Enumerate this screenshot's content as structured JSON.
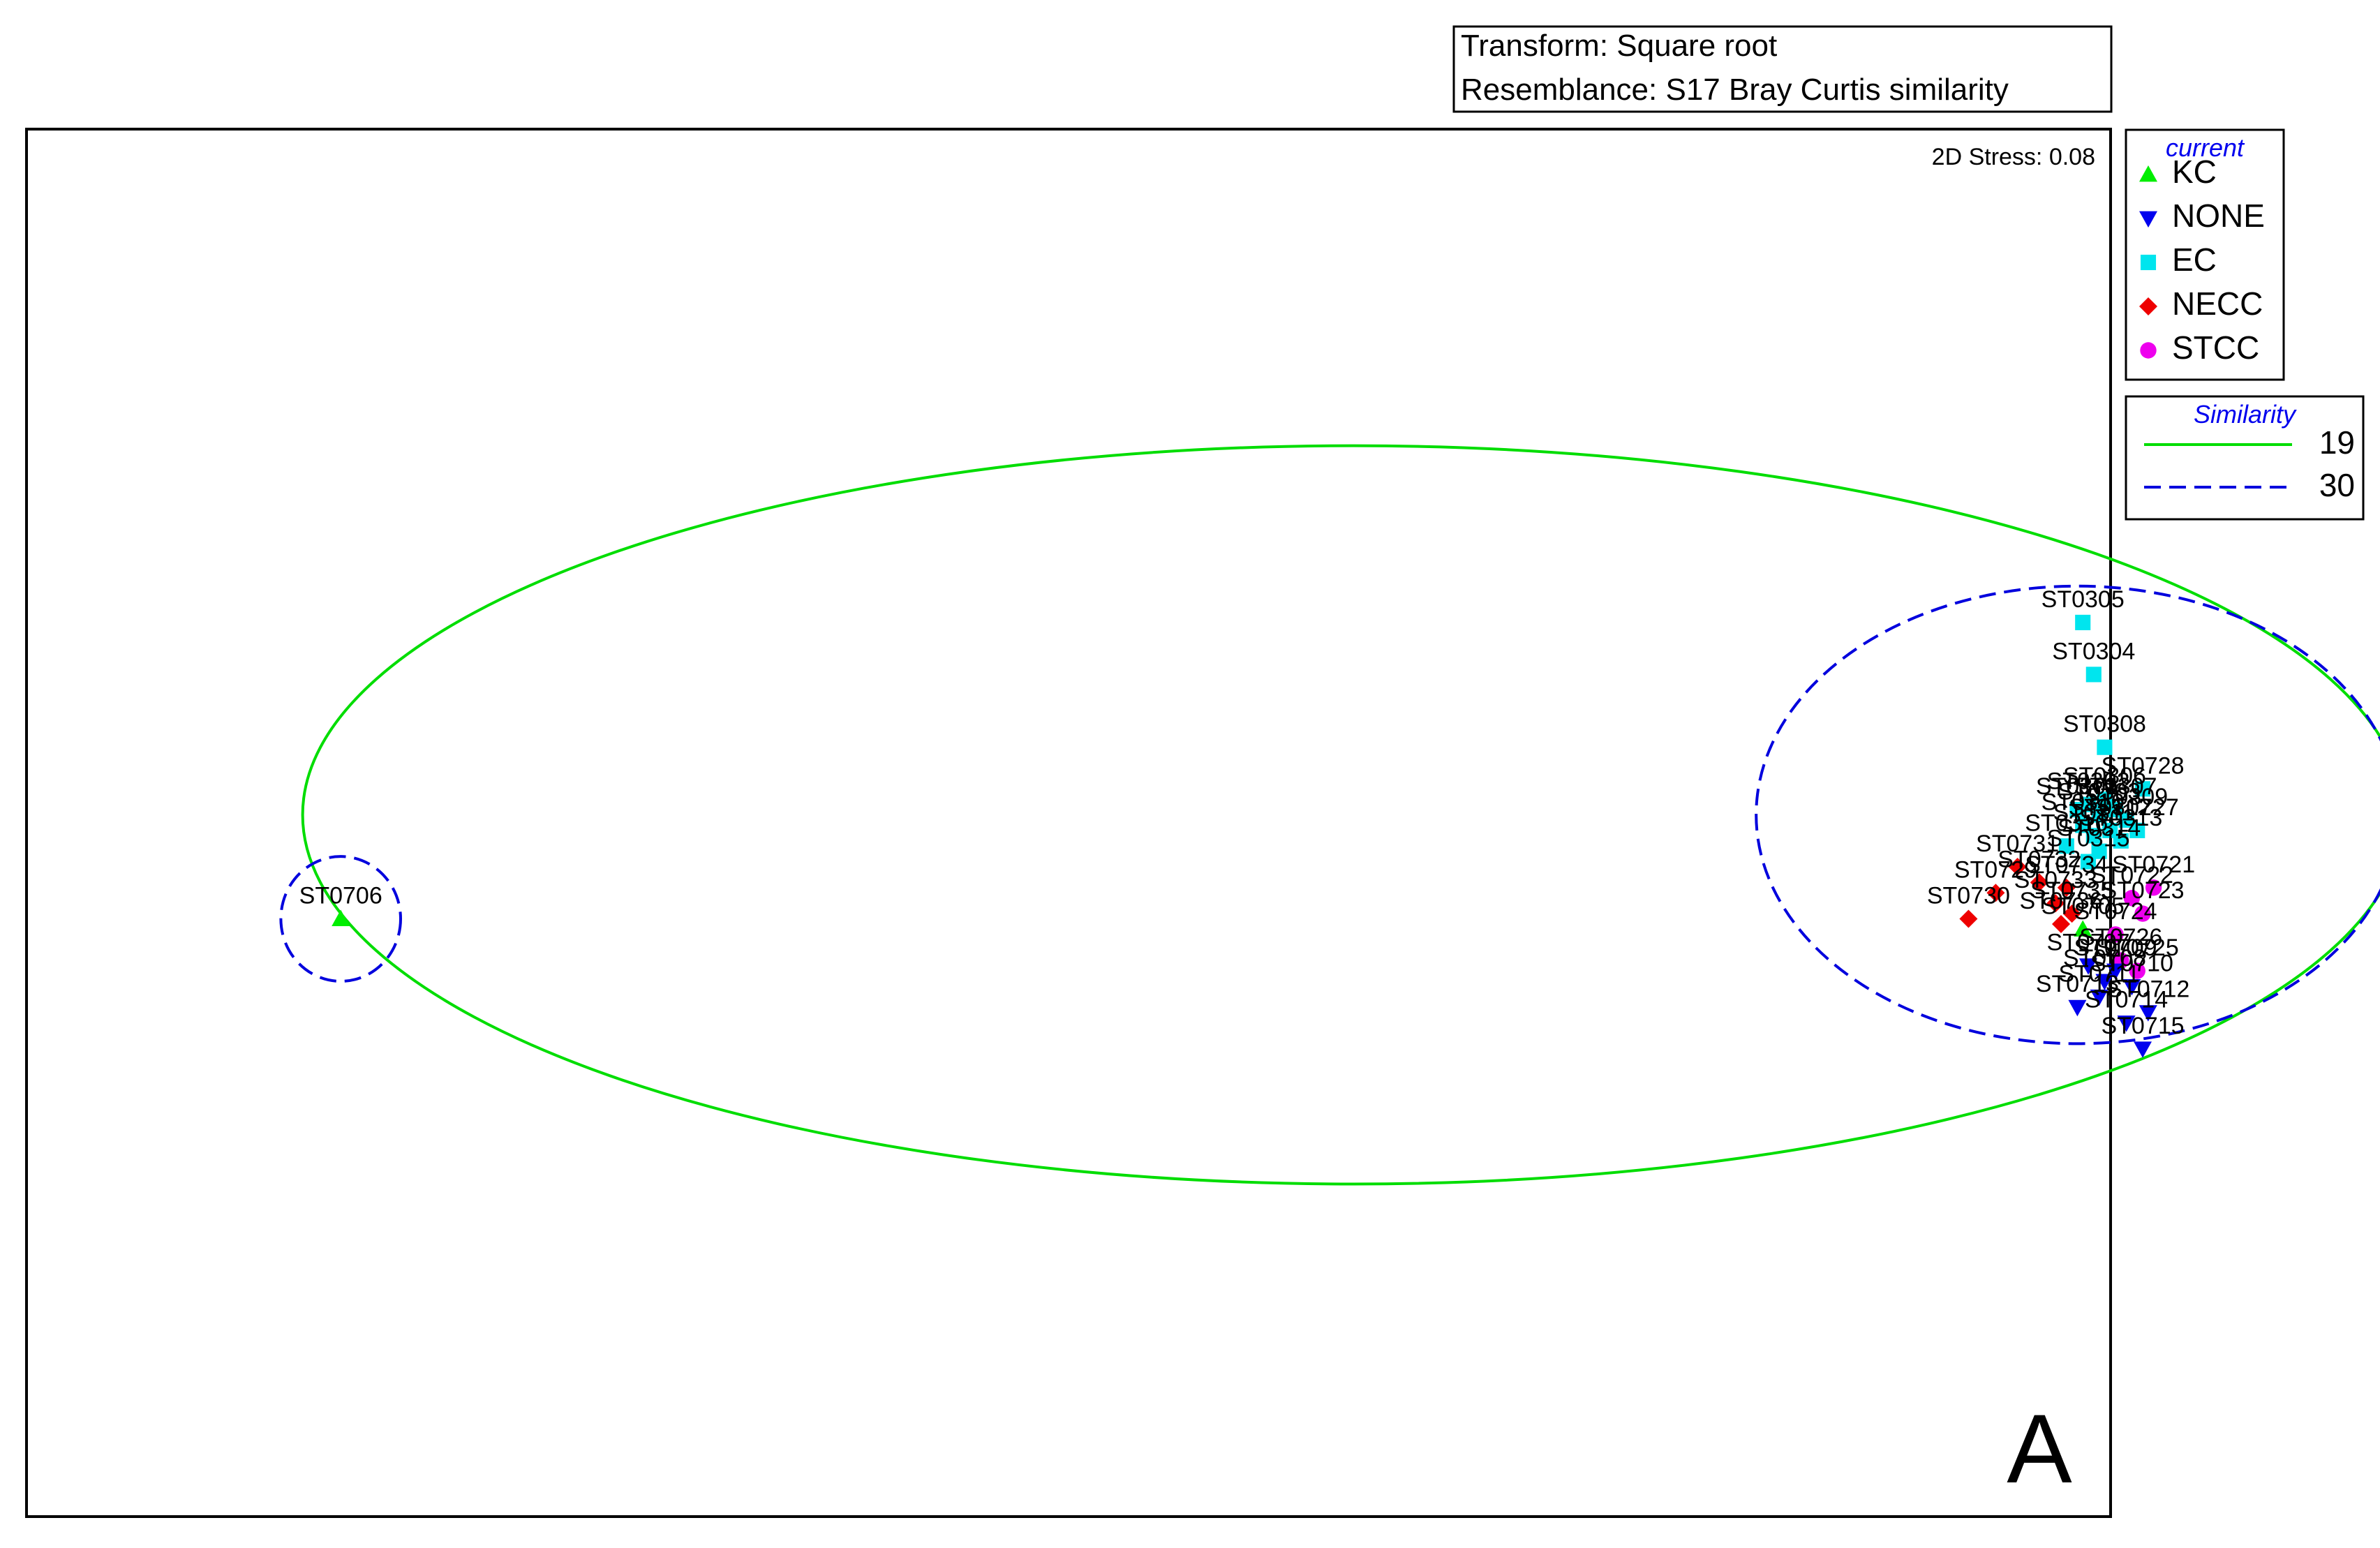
{
  "info_box": {
    "transform": "Transform: Square root",
    "resemblance": "Resemblance: S17 Bray Curtis similarity"
  },
  "chart_data": {
    "type": "scatter",
    "subtype": "nMDS ordination",
    "stress_label": "2D Stress: 0.08",
    "panel_label": "A",
    "grid": false,
    "legend_group": {
      "title": "current",
      "entries": [
        {
          "name": "KC",
          "color": "#00ee00",
          "marker": "triangle-up"
        },
        {
          "name": "NONE",
          "color": "#0000ee",
          "marker": "triangle-down"
        },
        {
          "name": "EC",
          "color": "#00e5ee",
          "marker": "square"
        },
        {
          "name": "NECC",
          "color": "#ee0000",
          "marker": "diamond"
        },
        {
          "name": "STCC",
          "color": "#ee00ee",
          "marker": "circle"
        }
      ]
    },
    "legend_similarity": {
      "title": "Similarity",
      "entries": [
        {
          "value": "19",
          "color": "#00dd00",
          "style": "solid"
        },
        {
          "value": "30",
          "color": "#0000dd",
          "style": "dashed"
        }
      ]
    },
    "points": [
      {
        "label": "ST0706",
        "group": "KC",
        "x": -2.86,
        "y": -0.19
      },
      {
        "label": "ST0305",
        "group": "EC",
        "x": 0.34,
        "y": 0.38
      },
      {
        "label": "ST0304",
        "group": "EC",
        "x": 0.36,
        "y": 0.28
      },
      {
        "label": "ST0308",
        "group": "EC",
        "x": 0.38,
        "y": 0.14
      },
      {
        "label": "ST0728",
        "group": "EC",
        "x": 0.45,
        "y": 0.06
      },
      {
        "label": "ST0301",
        "group": "EC",
        "x": 0.33,
        "y": 0.02
      },
      {
        "label": "ST0302",
        "group": "EC",
        "x": 0.35,
        "y": 0.03
      },
      {
        "label": "ST0303",
        "group": "EC",
        "x": 0.37,
        "y": 0.01
      },
      {
        "label": "ST0306",
        "group": "EC",
        "x": 0.38,
        "y": 0.04
      },
      {
        "label": "ST0307",
        "group": "EC",
        "x": 0.4,
        "y": 0.02
      },
      {
        "label": "ST0309",
        "group": "EC",
        "x": 0.42,
        "y": 0.0
      },
      {
        "label": "ST0310",
        "group": "EC",
        "x": 0.34,
        "y": -0.01
      },
      {
        "label": "ST0311",
        "group": "EC",
        "x": 0.36,
        "y": -0.03
      },
      {
        "label": "ST0312",
        "group": "EC",
        "x": 0.39,
        "y": -0.02
      },
      {
        "label": "ST0313",
        "group": "EC",
        "x": 0.41,
        "y": -0.04
      },
      {
        "label": "ST0314",
        "group": "EC",
        "x": 0.37,
        "y": -0.06
      },
      {
        "label": "ST0315",
        "group": "EC",
        "x": 0.35,
        "y": -0.08
      },
      {
        "label": "ST0316",
        "group": "EC",
        "x": 0.31,
        "y": -0.05
      },
      {
        "label": "ST0727",
        "group": "EC",
        "x": 0.44,
        "y": -0.02
      },
      {
        "label": "ST0730",
        "group": "NECC",
        "x": 0.13,
        "y": -0.19
      },
      {
        "label": "ST0729",
        "group": "NECC",
        "x": 0.18,
        "y": -0.14
      },
      {
        "label": "ST0731",
        "group": "NECC",
        "x": 0.22,
        "y": -0.09
      },
      {
        "label": "ST0732",
        "group": "NECC",
        "x": 0.26,
        "y": -0.12
      },
      {
        "label": "ST0733",
        "group": "NECC",
        "x": 0.29,
        "y": -0.16
      },
      {
        "label": "ST0734",
        "group": "NECC",
        "x": 0.31,
        "y": -0.13
      },
      {
        "label": "ST0735",
        "group": "NECC",
        "x": 0.32,
        "y": -0.18
      },
      {
        "label": "ST0736",
        "group": "NECC",
        "x": 0.3,
        "y": -0.2
      },
      {
        "label": "ST0721",
        "group": "STCC",
        "x": 0.47,
        "y": -0.13
      },
      {
        "label": "ST0722",
        "group": "STCC",
        "x": 0.43,
        "y": -0.15
      },
      {
        "label": "ST0723",
        "group": "STCC",
        "x": 0.45,
        "y": -0.18
      },
      {
        "label": "ST0724",
        "group": "STCC",
        "x": 0.4,
        "y": -0.22
      },
      {
        "label": "ST0725",
        "group": "STCC",
        "x": 0.44,
        "y": -0.29
      },
      {
        "label": "ST0726",
        "group": "STCC",
        "x": 0.41,
        "y": -0.27
      },
      {
        "label": "ST0705",
        "group": "KC",
        "x": 0.34,
        "y": -0.21
      },
      {
        "label": "ST0707",
        "group": "NONE",
        "x": 0.35,
        "y": -0.28
      },
      {
        "label": "ST0708",
        "group": "NONE",
        "x": 0.38,
        "y": -0.31
      },
      {
        "label": "ST0709",
        "group": "NONE",
        "x": 0.4,
        "y": -0.29
      },
      {
        "label": "ST0710",
        "group": "NONE",
        "x": 0.43,
        "y": -0.32
      },
      {
        "label": "ST0711",
        "group": "NONE",
        "x": 0.37,
        "y": -0.34
      },
      {
        "label": "ST0712",
        "group": "NONE",
        "x": 0.46,
        "y": -0.37
      },
      {
        "label": "ST0713",
        "group": "NONE",
        "x": 0.33,
        "y": -0.36
      },
      {
        "label": "ST0714",
        "group": "NONE",
        "x": 0.42,
        "y": -0.39
      },
      {
        "label": "ST0715",
        "group": "NONE",
        "x": 0.45,
        "y": -0.44
      }
    ],
    "contours": [
      {
        "level": "19",
        "type": "ellipse",
        "cx": -1.0,
        "cy": 0.01,
        "rx": 1.93,
        "ry": 0.71
      },
      {
        "level": "30",
        "type": "ellipse",
        "cx": 0.33,
        "cy": 0.01,
        "rx": 0.59,
        "ry": 0.44
      },
      {
        "level": "30",
        "type": "ellipse",
        "cx": -2.86,
        "cy": -0.19,
        "rx": 0.11,
        "ry": 0.12
      }
    ]
  }
}
